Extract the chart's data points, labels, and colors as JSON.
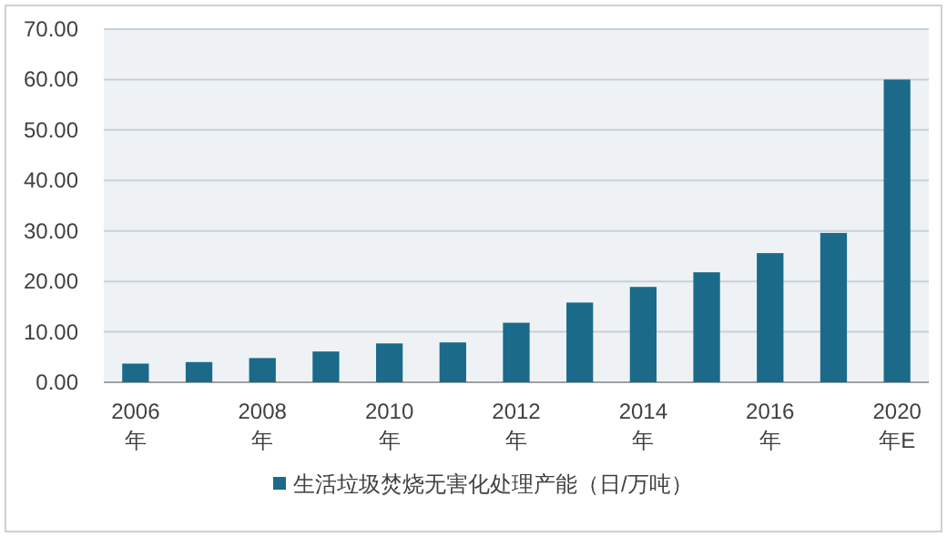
{
  "chart_data": {
    "type": "bar",
    "categories": [
      "2006年",
      null,
      "2008年",
      null,
      "2010年",
      null,
      "2012年",
      null,
      "2014年",
      null,
      "2016年",
      null,
      "2020年E"
    ],
    "series": [
      {
        "name": "生活垃圾焚烧无害化处理产能（日/万吨）",
        "color": "#1b6a8a",
        "values": [
          3.7,
          4.0,
          4.8,
          6.1,
          7.7,
          7.9,
          11.8,
          15.8,
          18.9,
          21.8,
          25.6,
          29.6,
          60
        ]
      }
    ],
    "ylim": [
      0,
      70
    ],
    "yticks": [
      {
        "value": 0,
        "label": "0.00"
      },
      {
        "value": 10,
        "label": "10.00"
      },
      {
        "value": 20,
        "label": "20.00"
      },
      {
        "value": 30,
        "label": "30.00"
      },
      {
        "value": 40,
        "label": "40.00"
      },
      {
        "value": 50,
        "label": "50.00"
      },
      {
        "value": 60,
        "label": "60.00"
      },
      {
        "value": 70,
        "label": "70.00"
      }
    ],
    "grid": "y",
    "legend": "bottom"
  }
}
